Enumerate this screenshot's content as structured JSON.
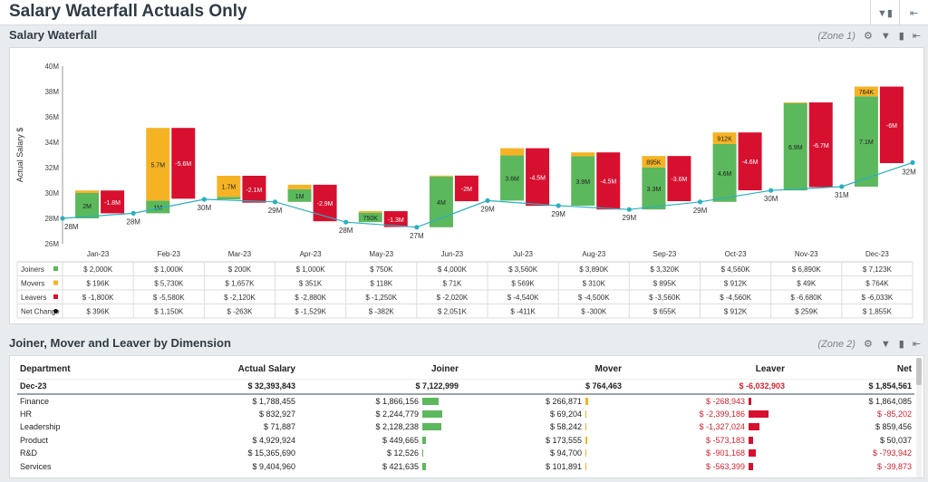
{
  "app": {
    "title": "Salary Waterfall Actuals Only"
  },
  "sections": {
    "waterfall_title": "Salary Waterfall",
    "waterfall_zone": "(Zone 1)",
    "dimension_title": "Joiner, Mover and Leaver by Dimension",
    "dimension_zone": "(Zone 2)"
  },
  "colors": {
    "joiners": "#5cb85c",
    "movers": "#f5b324",
    "leavers": "#d7102f",
    "net": "#2ab0c0",
    "accent_text": "#2f3b45"
  },
  "icons": [
    "filter-icon",
    "comment-icon",
    "export-icon",
    "settings-icon"
  ],
  "chart_data": {
    "type": "bar",
    "ylabel": "Actual Salary $",
    "ylim": [
      26,
      40
    ],
    "yticks": [
      "26M",
      "28M",
      "30M",
      "32M",
      "34M",
      "36M",
      "38M",
      "40M"
    ],
    "categories": [
      "Jan-23",
      "Feb-23",
      "Mar-23",
      "Apr-23",
      "May-23",
      "Jun-23",
      "Jul-23",
      "Aug-23",
      "Sep-23",
      "Oct-23",
      "Nov-23",
      "Dec-23"
    ],
    "start_values": [
      28.0,
      28.4,
      29.5,
      29.3,
      27.7,
      27.3,
      29.4,
      29.0,
      28.7,
      29.3,
      30.2,
      30.5
    ],
    "end_values": [
      28.4,
      29.5,
      29.3,
      27.7,
      27.3,
      29.4,
      29.0,
      28.7,
      29.3,
      30.2,
      30.5,
      32.4
    ],
    "start_labels": [
      "28M",
      "28M",
      "30M",
      "29M",
      "28M",
      "27M",
      "29M",
      "29M",
      "29M",
      "29M",
      "30M",
      "31M"
    ],
    "end_label": "32M",
    "joiner_values": [
      2.0,
      1.0,
      0.2,
      1.0,
      0.75,
      4.0,
      3.56,
      3.89,
      3.32,
      4.56,
      6.89,
      7.123
    ],
    "mover_values": [
      0.196,
      5.73,
      1.657,
      0.351,
      0.118,
      0.071,
      0.569,
      0.31,
      0.895,
      0.912,
      0.049,
      0.764
    ],
    "leaver_values": [
      -1.8,
      -5.58,
      -2.12,
      -2.88,
      -1.25,
      -2.02,
      -4.54,
      -4.5,
      -3.56,
      -4.56,
      -6.68,
      -6.033
    ],
    "joiner_labels": [
      "2M",
      "1M",
      "",
      "1M",
      "750K",
      "4M",
      "3.6M",
      "3.9M",
      "3.3M",
      "4.6M",
      "6.9M",
      "7.1M"
    ],
    "mover_labels": [
      "",
      "5.7M",
      "1.7M",
      "",
      "",
      "",
      "",
      "",
      "895K",
      "912K",
      "",
      "764K"
    ],
    "leaver_labels": [
      "-1.8M",
      "-5.6M",
      "-2.1M",
      "-2.9M",
      "-1.3M",
      "-2M",
      "-4.5M",
      "-4.5M",
      "-3.6M",
      "-4.6M",
      "-6.7M",
      "-6M"
    ],
    "series": [
      {
        "name": "Joiners"
      },
      {
        "name": "Movers"
      },
      {
        "name": "Leavers"
      },
      {
        "name": "Net Change"
      }
    ],
    "table_rows": [
      {
        "label": "Joiners",
        "values": [
          "$ 2,000K",
          "$ 1,000K",
          "$ 200K",
          "$ 1,000K",
          "$ 750K",
          "$ 4,000K",
          "$ 3,560K",
          "$ 3,890K",
          "$ 3,320K",
          "$ 4,560K",
          "$ 6,890K",
          "$ 7,123K"
        ]
      },
      {
        "label": "Movers",
        "values": [
          "$ 196K",
          "$ 5,730K",
          "$ 1,657K",
          "$ 351K",
          "$ 118K",
          "$ 71K",
          "$ 569K",
          "$ 310K",
          "$ 895K",
          "$ 912K",
          "$ 49K",
          "$ 764K"
        ]
      },
      {
        "label": "Leavers",
        "values": [
          "$ -1,800K",
          "$ -5,580K",
          "$ -2,120K",
          "$ -2,880K",
          "$ -1,250K",
          "$ -2,020K",
          "$ -4,540K",
          "$ -4,500K",
          "$ -3,560K",
          "$ -4,560K",
          "$ -6,680K",
          "$ -6,033K"
        ]
      },
      {
        "label": "Net Change",
        "values": [
          "$ 396K",
          "$ 1,150K",
          "$ -263K",
          "$ -1,529K",
          "$ -382K",
          "$ 2,051K",
          "$ -411K",
          "$ -300K",
          "$ 655K",
          "$ 912K",
          "$ 259K",
          "$ 1,855K"
        ]
      }
    ]
  },
  "dimension_table": {
    "headers": {
      "department": "Department",
      "actual_salary": "Actual Salary",
      "joiner": "Joiner",
      "mover": "Mover",
      "leaver": "Leaver",
      "net": "Net"
    },
    "total": {
      "label": "Dec-23",
      "actual_salary": "$ 32,393,843",
      "joiner": "$ 7,122,999",
      "mover": "$ 764,463",
      "leaver": "$ -6,032,903",
      "net": "$ 1,854,561"
    },
    "rows": [
      {
        "department": "Finance",
        "actual_salary": "$ 1,788,455",
        "joiner": "$ 1,866,156",
        "joiner_share": 0.83,
        "mover": "$ 266,871",
        "mover_share": 0.12,
        "leaver": "$ -268,943",
        "leaver_share": 0.12,
        "net": "$ 1,864,085"
      },
      {
        "department": "HR",
        "actual_salary": "$ 832,927",
        "joiner": "$ 2,244,779",
        "joiner_share": 1.0,
        "mover": "$ 69,204",
        "mover_share": 0.03,
        "leaver": "$ -2,399,186",
        "leaver_share": 1.0,
        "net": "$ -85,202"
      },
      {
        "department": "Leadership",
        "actual_salary": "$ 71,887",
        "joiner": "$ 2,128,238",
        "joiner_share": 0.95,
        "mover": "$ 58,242",
        "mover_share": 0.03,
        "leaver": "$ -1,327,024",
        "leaver_share": 0.55,
        "net": "$ 859,456"
      },
      {
        "department": "Product",
        "actual_salary": "$ 4,929,924",
        "joiner": "$ 449,665",
        "joiner_share": 0.2,
        "mover": "$ 173,555",
        "mover_share": 0.08,
        "leaver": "$ -573,183",
        "leaver_share": 0.24,
        "net": "$ 50,037"
      },
      {
        "department": "R&D",
        "actual_salary": "$ 15,365,690",
        "joiner": "$ 12,526",
        "joiner_share": 0.01,
        "mover": "$ 94,700",
        "mover_share": 0.04,
        "leaver": "$ -901,168",
        "leaver_share": 0.38,
        "net": "$ -793,942"
      },
      {
        "department": "Services",
        "actual_salary": "$ 9,404,960",
        "joiner": "$ 421,635",
        "joiner_share": 0.19,
        "mover": "$ 101,891",
        "mover_share": 0.05,
        "leaver": "$ -563,399",
        "leaver_share": 0.23,
        "net": "$ -39,873"
      }
    ]
  }
}
